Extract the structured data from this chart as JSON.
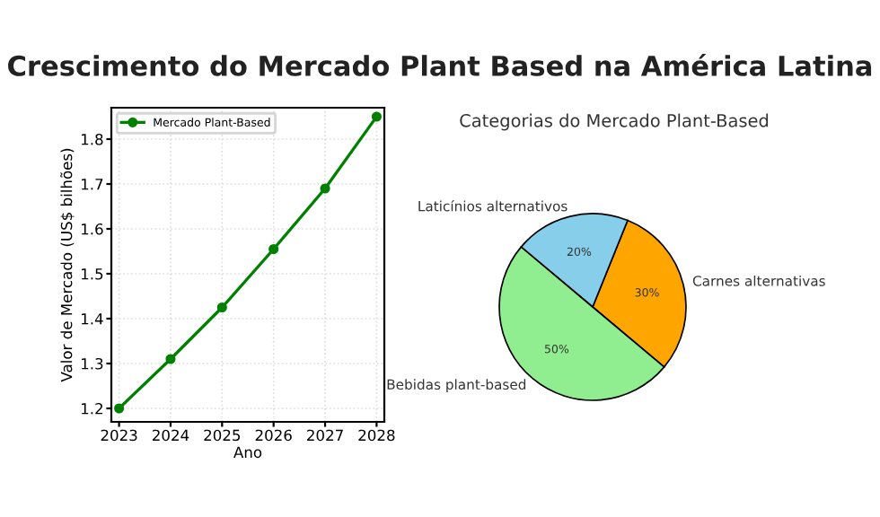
{
  "chart_data": [
    {
      "type": "line",
      "title": "Crescimento do Mercado Plant Based na América Latina",
      "xlabel": "Ano",
      "ylabel": "Valor de Mercado (US$ bilhões)",
      "x": [
        2023,
        2024,
        2025,
        2026,
        2027,
        2028
      ],
      "series": [
        {
          "name": "Mercado Plant-Based",
          "color": "#008000",
          "values": [
            1.2,
            1.31,
            1.425,
            1.555,
            1.69,
            1.85
          ]
        }
      ],
      "xlim": [
        2022.85,
        2028.15
      ],
      "xticks": [
        2023,
        2024,
        2025,
        2026,
        2027,
        2028
      ],
      "ylim": [
        1.17,
        1.87
      ],
      "yticks": [
        1.2,
        1.3,
        1.4,
        1.5,
        1.6,
        1.7,
        1.8
      ],
      "grid": true,
      "legend": "top left",
      "marker": "circle",
      "line_style": "solid"
    },
    {
      "type": "pie",
      "title": "Categorias do Mercado Plant-Based",
      "categories": [
        "Carnes alternativas",
        "Laticínios alternativos",
        "Bebidas plant-based"
      ],
      "values": [
        30,
        20,
        50
      ],
      "colors": [
        "#ffa500",
        "#87ceeb",
        "#90ee90"
      ],
      "value_labels": [
        "30%",
        "20%",
        "50%"
      ]
    }
  ]
}
